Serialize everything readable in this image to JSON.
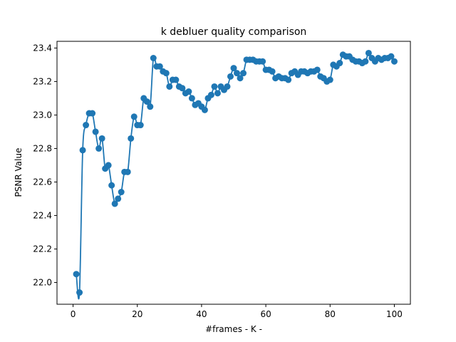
{
  "chart_data": {
    "type": "line",
    "title": "k debluer quality comparison",
    "xlabel": "#frames - K -",
    "ylabel": "PSNR Value",
    "xlim": [
      -5,
      105
    ],
    "ylim": [
      21.87,
      23.44
    ],
    "xticks": [
      0,
      20,
      40,
      60,
      80,
      100
    ],
    "yticks": [
      22.0,
      22.2,
      22.4,
      22.6,
      22.8,
      23.0,
      23.2,
      23.4
    ],
    "xtick_labels": [
      "0",
      "20",
      "40",
      "60",
      "80",
      "100"
    ],
    "ytick_labels": [
      "22.0",
      "22.2",
      "22.4",
      "22.6",
      "22.8",
      "23.0",
      "23.2",
      "23.4"
    ],
    "grid": false,
    "colors": {
      "series": "#1f77b4",
      "axes": "#000000",
      "background": "#ffffff"
    },
    "series": [
      {
        "style": "markers+smooth-line",
        "x": [
          1,
          2,
          3,
          4,
          5,
          6,
          7,
          8,
          9,
          10,
          11,
          12,
          13,
          14,
          15,
          16,
          17,
          18,
          19,
          20,
          21,
          22,
          23,
          24,
          25,
          26,
          27,
          28,
          29,
          30,
          31,
          32,
          33,
          34,
          35,
          36,
          37,
          38,
          39,
          40,
          41,
          42,
          43,
          44,
          45,
          46,
          47,
          48,
          49,
          50,
          51,
          52,
          53,
          54,
          55,
          56,
          57,
          58,
          59,
          60,
          61,
          62,
          63,
          64,
          65,
          66,
          67,
          68,
          69,
          70,
          71,
          72,
          73,
          74,
          75,
          76,
          77,
          78,
          79,
          80,
          81,
          82,
          83,
          84,
          85,
          86,
          87,
          88,
          89,
          90,
          91,
          92,
          93,
          94,
          95,
          96,
          97,
          98,
          99,
          100
        ],
        "y": [
          22.05,
          21.94,
          22.79,
          22.94,
          23.01,
          23.01,
          22.9,
          22.8,
          22.86,
          22.68,
          22.7,
          22.58,
          22.47,
          22.5,
          22.54,
          22.66,
          22.66,
          22.86,
          22.99,
          22.94,
          22.94,
          23.1,
          23.08,
          23.05,
          23.34,
          23.29,
          23.29,
          23.26,
          23.25,
          23.17,
          23.21,
          23.21,
          23.17,
          23.16,
          23.13,
          23.14,
          23.1,
          23.06,
          23.07,
          23.05,
          23.03,
          23.1,
          23.12,
          23.17,
          23.13,
          23.17,
          23.15,
          23.17,
          23.23,
          23.28,
          23.25,
          23.22,
          23.25,
          23.33,
          23.33,
          23.33,
          23.32,
          23.32,
          23.32,
          23.27,
          23.27,
          23.26,
          23.22,
          23.23,
          23.22,
          23.22,
          23.21,
          23.25,
          23.26,
          23.24,
          23.26,
          23.26,
          23.25,
          23.26,
          23.26,
          23.27,
          23.23,
          23.22,
          23.2,
          23.21,
          23.3,
          23.29,
          23.31,
          23.36,
          23.35,
          23.35,
          23.33,
          23.32,
          23.32,
          23.31,
          23.32,
          23.37,
          23.34,
          23.32,
          23.34,
          23.33,
          23.34,
          23.34,
          23.35,
          23.32
        ]
      }
    ]
  }
}
